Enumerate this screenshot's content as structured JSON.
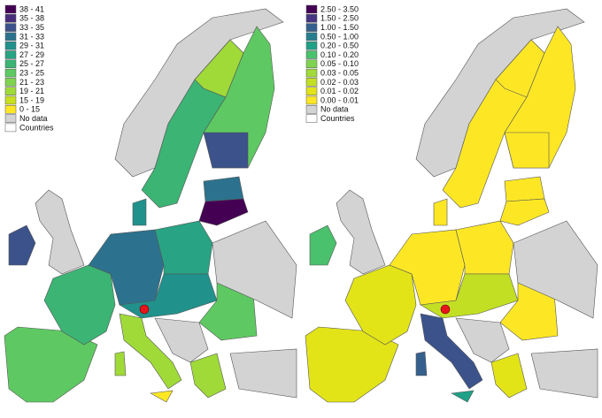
{
  "maps": [
    {
      "legend": [
        {
          "label": "38 - 41",
          "color": "#440154"
        },
        {
          "label": "35 - 38",
          "color": "#472d7b"
        },
        {
          "label": "33 - 35",
          "color": "#3b528b"
        },
        {
          "label": "31 - 33",
          "color": "#2c728e"
        },
        {
          "label": "29 - 31",
          "color": "#21918c"
        },
        {
          "label": "27 - 29",
          "color": "#28a383"
        },
        {
          "label": "25 - 27",
          "color": "#3bb474"
        },
        {
          "label": "23 - 25",
          "color": "#5ec962"
        },
        {
          "label": "21 - 23",
          "color": "#7fd34e"
        },
        {
          "label": "19 - 21",
          "color": "#a0da39"
        },
        {
          "label": "15 - 19",
          "color": "#c8e020"
        },
        {
          "label": "0 - 15",
          "color": "#fde725"
        },
        {
          "label": "No data",
          "color": "#d3d3d3"
        },
        {
          "label": "Countries",
          "color": "#ffffff"
        }
      ]
    },
    {
      "legend": [
        {
          "label": "2.50 - 3.50",
          "color": "#440154"
        },
        {
          "label": "1.50 - 2.50",
          "color": "#463480"
        },
        {
          "label": "1.00 - 1.50",
          "color": "#35608d"
        },
        {
          "label": "0.50 - 1.00",
          "color": "#277f8e"
        },
        {
          "label": "0.20 - 0.50",
          "color": "#1fa187"
        },
        {
          "label": "0.10 - 0.20",
          "color": "#4ac16d"
        },
        {
          "label": "0.05 - 0.10",
          "color": "#7fd34e"
        },
        {
          "label": "0.03 - 0.05",
          "color": "#a0da39"
        },
        {
          "label": "0.02 - 0.03",
          "color": "#c2df23"
        },
        {
          "label": "0.01 - 0.02",
          "color": "#e2e418"
        },
        {
          "label": "0.00 - 0.01",
          "color": "#fde725"
        },
        {
          "label": "No data",
          "color": "#d3d3d3"
        },
        {
          "label": "Countries",
          "color": "#ffffff"
        }
      ]
    }
  ]
}
